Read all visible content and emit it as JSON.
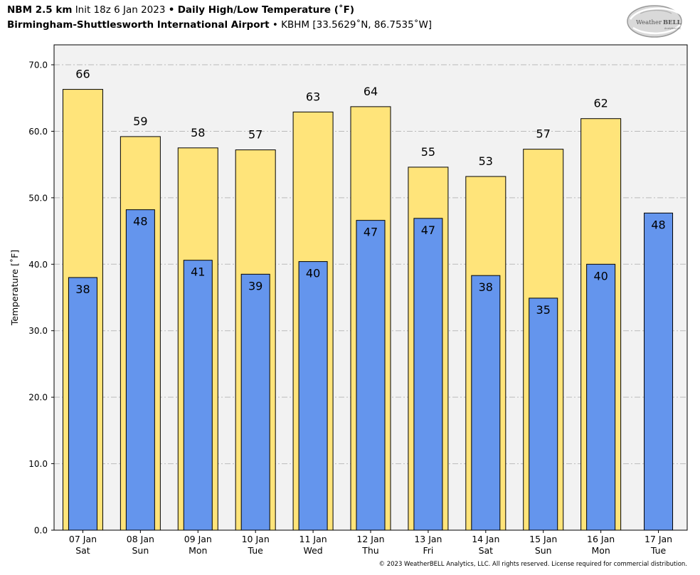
{
  "header": {
    "model": "NBM 2.5 km",
    "init": "Init 18z 6 Jan 2023",
    "bullet1": "•",
    "title": "Daily High/Low Temperature (˚F)",
    "station": "Birmingham-Shuttlesworth International Airport",
    "bullet2": "•",
    "station_info": "KBHM [33.5629˚N, 86.7535˚W]"
  },
  "logo": {
    "text_left": "Weather",
    "text_right": "BELL",
    "sub": "Analytics LLC"
  },
  "copyright": "© 2023 WeatherBELL Analytics, LLC. All rights reserved. License required for commercial distribution.",
  "colors": {
    "high": "#ffe47a",
    "low": "#6495ed",
    "plot_bg": "#f2f2f2",
    "grid": "#bbbbbb"
  },
  "chart_data": {
    "type": "bar",
    "categories": [
      [
        "07 Jan",
        "Sat"
      ],
      [
        "08 Jan",
        "Sun"
      ],
      [
        "09 Jan",
        "Mon"
      ],
      [
        "10 Jan",
        "Tue"
      ],
      [
        "11 Jan",
        "Wed"
      ],
      [
        "12 Jan",
        "Thu"
      ],
      [
        "13 Jan",
        "Fri"
      ],
      [
        "14 Jan",
        "Sat"
      ],
      [
        "15 Jan",
        "Sun"
      ],
      [
        "16 Jan",
        "Mon"
      ],
      [
        "17 Jan",
        "Tue"
      ]
    ],
    "series": [
      {
        "values": [
          66.3,
          59.2,
          57.5,
          57.2,
          62.9,
          63.7,
          54.6,
          53.2,
          57.3,
          61.9,
          null
        ],
        "labels": [
          "66",
          "59",
          "58",
          "57",
          "63",
          "64",
          "55",
          "53",
          "57",
          "62",
          ""
        ]
      },
      {
        "values": [
          38.0,
          48.2,
          40.6,
          38.5,
          40.4,
          46.6,
          46.9,
          38.3,
          34.9,
          40.0,
          47.7
        ],
        "labels": [
          "38",
          "48",
          "41",
          "39",
          "40",
          "47",
          "47",
          "38",
          "35",
          "40",
          "48"
        ]
      }
    ],
    "ylabel": "Temperature [˚F]",
    "ylim": [
      0,
      73
    ],
    "yticks": [
      "0.0",
      "10.0",
      "20.0",
      "30.0",
      "40.0",
      "50.0",
      "60.0",
      "70.0"
    ],
    "grid": true
  }
}
